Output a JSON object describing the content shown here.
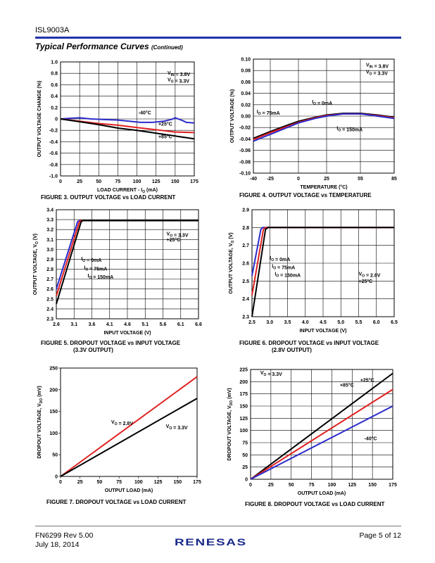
{
  "header": {
    "doc_id": "ISL9003A",
    "section_title": "Typical Performance Curves",
    "section_suffix": "(Continued)"
  },
  "footer": {
    "doc_number": "FN6299  Rev 5.00",
    "date": "July 18, 2014",
    "page": "Page 5 of 12",
    "logo": "RENESAS"
  },
  "colors": {
    "blue": "#2b2bcc",
    "red": "#e02020",
    "black": "#000000",
    "rule": "#2233aa"
  },
  "chart_data": [
    {
      "id": "fig3",
      "type": "line",
      "caption": "FIGURE 3.  OUTPUT VOLTAGE vs LOAD CURRENT",
      "xlabel": "LOAD CURRENT - I_O (mA)",
      "ylabel": "OUTPUT VOLTAGE CHANGE (%)",
      "xlim": [
        0,
        175
      ],
      "ylim": [
        -1.0,
        1.0
      ],
      "xticks": [
        0,
        25,
        50,
        75,
        100,
        125,
        150,
        175
      ],
      "xtick_labels": [
        "0",
        "25",
        "50",
        "75",
        "100",
        "125",
        "150",
        "175"
      ],
      "yticks": [
        -1.0,
        -0.8,
        -0.6,
        -0.4,
        -0.2,
        0,
        0.2,
        0.4,
        0.6,
        0.8,
        1.0
      ],
      "ytick_labels": [
        "-1.0",
        "-0.8",
        "-0.6",
        "-0.4",
        "-0.2",
        "0",
        "0.2",
        "0.4",
        "0.6",
        "0.8",
        "1.0"
      ],
      "grid": true,
      "series": [
        {
          "name": "-40°C",
          "color": "#2b2bcc",
          "x": [
            0,
            10,
            25,
            40,
            55,
            75,
            90,
            105,
            120,
            135,
            145,
            150,
            158,
            165,
            175
          ],
          "y": [
            0,
            0.01,
            0.02,
            0,
            -0.01,
            -0.02,
            -0.04,
            -0.06,
            -0.06,
            -0.04,
            -0.01,
            0.02,
            -0.02,
            -0.06,
            -0.07
          ]
        },
        {
          "name": "+25°C",
          "color": "#e02020",
          "x": [
            0,
            25,
            50,
            75,
            100,
            125,
            150,
            175
          ],
          "y": [
            0,
            -0.04,
            -0.08,
            -0.11,
            -0.15,
            -0.19,
            -0.23,
            -0.24
          ]
        },
        {
          "name": "+85°C",
          "color": "#000000",
          "x": [
            0,
            25,
            50,
            75,
            100,
            125,
            150,
            175
          ],
          "y": [
            0,
            -0.05,
            -0.1,
            -0.16,
            -0.2,
            -0.25,
            -0.3,
            -0.35
          ]
        }
      ],
      "annotations": [
        {
          "parts": [
            [
              "V",
              ""
            ],
            [
              "IN",
              "sub"
            ],
            [
              " = 3.8V",
              ""
            ]
          ],
          "x": 140,
          "y": 0.78
        },
        {
          "parts": [
            [
              "V",
              ""
            ],
            [
              "O",
              "sub"
            ],
            [
              " = 3.3V",
              ""
            ]
          ],
          "x": 140,
          "y": 0.66
        },
        {
          "parts": [
            [
              "-40°C",
              ""
            ]
          ],
          "x": 102,
          "y": 0.08
        },
        {
          "parts": [
            [
              "+25°C",
              ""
            ]
          ],
          "x": 128,
          "y": -0.12
        },
        {
          "parts": [
            [
              "+85°C",
              ""
            ]
          ],
          "x": 128,
          "y": -0.34
        }
      ]
    },
    {
      "id": "fig4",
      "type": "line",
      "caption": "FIGURE 4.  OUTPUT VOLTAGE vs TEMPERATURE",
      "xlabel": "TEMPERATURE (°C)",
      "ylabel": "OUTPUT VOLTAGE (%)",
      "xlim": [
        -40,
        85
      ],
      "ylim": [
        -0.1,
        0.1
      ],
      "xticks": [
        -40,
        -25,
        0,
        25,
        55,
        85
      ],
      "xtick_labels": [
        "-40",
        "-25",
        "0",
        "25",
        "55",
        "85"
      ],
      "yticks": [
        -0.1,
        -0.08,
        -0.06,
        -0.04,
        -0.02,
        0,
        0.02,
        0.04,
        0.06,
        0.08,
        0.1
      ],
      "ytick_labels": [
        "-0.10",
        "-0.08",
        "-0.06",
        "-0.04",
        "-0.02",
        "0.00",
        "0.02",
        "0.04",
        "0.06",
        "0.08",
        "0.10"
      ],
      "grid": true,
      "series": [
        {
          "name": "I_O = 0mA",
          "color": "#000000",
          "x": [
            -40,
            -25,
            -10,
            0,
            15,
            25,
            40,
            55,
            70,
            85
          ],
          "y": [
            -0.039,
            -0.027,
            -0.016,
            -0.009,
            -0.002,
            0.002,
            0.005,
            0.005,
            0.002,
            -0.002
          ]
        },
        {
          "name": "I_O = 75mA",
          "color": "#e02020",
          "x": [
            -40,
            -25,
            -10,
            0,
            15,
            25,
            40,
            55,
            70,
            85
          ],
          "y": [
            -0.041,
            -0.029,
            -0.018,
            -0.011,
            -0.003,
            0.001,
            0.004,
            0.004,
            0.001,
            -0.003
          ]
        },
        {
          "name": "I_O = 150mA",
          "color": "#2b2bcc",
          "x": [
            -40,
            -25,
            -10,
            0,
            15,
            25,
            40,
            55,
            70,
            85
          ],
          "y": [
            -0.044,
            -0.032,
            -0.02,
            -0.012,
            -0.004,
            0.0,
            0.004,
            0.004,
            0.0,
            -0.004
          ]
        }
      ],
      "annotations": [
        {
          "parts": [
            [
              "V",
              ""
            ],
            [
              "IN",
              "sub"
            ],
            [
              " = 3.8V",
              ""
            ]
          ],
          "x": 60,
          "y": 0.087
        },
        {
          "parts": [
            [
              "V",
              ""
            ],
            [
              "O",
              "sub"
            ],
            [
              " = 3.3V",
              ""
            ]
          ],
          "x": 60,
          "y": 0.075
        },
        {
          "parts": [
            [
              "I",
              ""
            ],
            [
              "O",
              "sub"
            ],
            [
              " = 0mA",
              ""
            ]
          ],
          "x": 12,
          "y": 0.022
        },
        {
          "parts": [
            [
              "I",
              ""
            ],
            [
              "O",
              "sub"
            ],
            [
              " = 75mA",
              ""
            ]
          ],
          "x": -37,
          "y": 0.005
        },
        {
          "parts": [
            [
              "I",
              ""
            ],
            [
              "O",
              "sub"
            ],
            [
              " = 150mA",
              ""
            ]
          ],
          "x": 34,
          "y": -0.024
        }
      ]
    },
    {
      "id": "fig5",
      "type": "line",
      "caption": "FIGURE 5.  DROPOUT VOLTAGE vs INPUT VOLTAGE",
      "caption2": "(3.3V OUTPUT)",
      "xlabel": "INPUT VOLTAGE (V)",
      "ylabel": "OUTPUT VOLTAGE, V_O (V)",
      "xlim": [
        2.6,
        6.6
      ],
      "ylim": [
        2.3,
        3.4
      ],
      "xticks": [
        2.6,
        3.1,
        3.6,
        4.1,
        4.6,
        5.1,
        5.6,
        6.1,
        6.6
      ],
      "xtick_labels": [
        "2.6",
        "3.1",
        "3.6",
        "4.1",
        "4.6",
        "5.1",
        "5.6",
        "6.1",
        "6.6"
      ],
      "yticks": [
        2.3,
        2.4,
        2.5,
        2.6,
        2.7,
        2.8,
        2.9,
        3.0,
        3.1,
        3.2,
        3.3,
        3.4
      ],
      "ytick_labels": [
        "2.3",
        "2.4",
        "2.5",
        "2.6",
        "2.7",
        "2.8",
        "2.9",
        "3.0",
        "3.1",
        "3.2",
        "3.3",
        "3.4"
      ],
      "grid": true,
      "series": [
        {
          "name": "I_O = 0mA",
          "color": "#2b2bcc",
          "x": [
            2.6,
            3.2,
            3.25,
            6.6
          ],
          "y": [
            2.6,
            3.28,
            3.29,
            3.29
          ]
        },
        {
          "name": "I_O = 75mA",
          "color": "#e02020",
          "x": [
            2.6,
            3.25,
            3.3,
            6.6
          ],
          "y": [
            2.53,
            3.28,
            3.29,
            3.29
          ]
        },
        {
          "name": "I_O = 150mA",
          "color": "#000000",
          "x": [
            2.6,
            3.3,
            3.35,
            6.6
          ],
          "y": [
            2.45,
            3.28,
            3.29,
            3.29
          ]
        }
      ],
      "annotations": [
        {
          "parts": [
            [
              "V",
              ""
            ],
            [
              "O",
              "sub"
            ],
            [
              " = 3.3V",
              ""
            ]
          ],
          "x": 5.7,
          "y": 3.14
        },
        {
          "parts": [
            [
              "+25°C",
              ""
            ]
          ],
          "x": 5.7,
          "y": 3.08
        },
        {
          "parts": [
            [
              "I",
              ""
            ],
            [
              "O",
              "sub"
            ],
            [
              " = 0mA",
              ""
            ]
          ],
          "x": 3.3,
          "y": 2.89
        },
        {
          "parts": [
            [
              "I",
              ""
            ],
            [
              "O",
              "sub"
            ],
            [
              " = 75mA",
              ""
            ]
          ],
          "x": 3.38,
          "y": 2.8
        },
        {
          "parts": [
            [
              "I",
              ""
            ],
            [
              "O",
              "sub"
            ],
            [
              " = 150mA",
              ""
            ]
          ],
          "x": 3.48,
          "y": 2.72
        }
      ]
    },
    {
      "id": "fig6",
      "type": "line",
      "caption": "FIGURE 6.  DROPOUT VOLTAGE vs INPUT VOLTAGE",
      "caption2": "(2.8V OUTPUT)",
      "xlabel": "INPUT VOLTAGE (V)",
      "ylabel": "OUTPUT VOLTAGE, V_O (V)",
      "xlim": [
        2.5,
        6.5
      ],
      "ylim": [
        2.3,
        2.9
      ],
      "xticks": [
        2.5,
        3.0,
        3.5,
        4.0,
        4.5,
        5.0,
        5.5,
        6.0,
        6.5
      ],
      "xtick_labels": [
        "2.5",
        "3.0",
        "3.5",
        "4.0",
        "4.5",
        "5.0",
        "5.5",
        "6.0",
        "6.5"
      ],
      "yticks": [
        2.3,
        2.4,
        2.5,
        2.6,
        2.7,
        2.8,
        2.9
      ],
      "ytick_labels": [
        "2.3",
        "2.4",
        "2.5",
        "2.6",
        "2.7",
        "2.8",
        "2.9"
      ],
      "grid": true,
      "series": [
        {
          "name": "I_O = 0mA",
          "color": "#2b2bcc",
          "x": [
            2.5,
            2.75,
            2.8,
            6.5
          ],
          "y": [
            2.53,
            2.79,
            2.8,
            2.8
          ]
        },
        {
          "name": "I_O = 75mA",
          "color": "#e02020",
          "x": [
            2.5,
            2.82,
            2.88,
            6.5
          ],
          "y": [
            2.42,
            2.79,
            2.8,
            2.8
          ]
        },
        {
          "name": "I_O = 150mA",
          "color": "#000000",
          "x": [
            2.5,
            2.88,
            2.95,
            6.5
          ],
          "y": [
            2.3,
            2.79,
            2.8,
            2.8
          ]
        }
      ],
      "annotations": [
        {
          "parts": [
            [
              "V",
              ""
            ],
            [
              "O",
              "sub"
            ],
            [
              " = 2.8V",
              ""
            ]
          ],
          "x": 5.5,
          "y": 2.53
        },
        {
          "parts": [
            [
              "+25°C",
              ""
            ]
          ],
          "x": 5.5,
          "y": 2.49
        },
        {
          "parts": [
            [
              "I",
              ""
            ],
            [
              "O",
              "sub"
            ],
            [
              " = 0mA",
              ""
            ]
          ],
          "x": 3.0,
          "y": 2.62
        },
        {
          "parts": [
            [
              "I",
              ""
            ],
            [
              "O",
              "sub"
            ],
            [
              " = 75mA",
              ""
            ]
          ],
          "x": 3.06,
          "y": 2.575
        },
        {
          "parts": [
            [
              "I",
              ""
            ],
            [
              "O",
              "sub"
            ],
            [
              " = 150mA",
              ""
            ]
          ],
          "x": 3.14,
          "y": 2.53
        }
      ]
    },
    {
      "id": "fig7",
      "type": "line",
      "caption": "FIGURE 7.  DROPOUT VOLTAGE vs LOAD CURRENT",
      "xlabel": "OUTPUT LOAD (mA)",
      "ylabel": "DROPOUT VOLTAGE, V_DO (mV)",
      "xlim": [
        0,
        175
      ],
      "ylim": [
        0,
        250
      ],
      "xticks": [
        0,
        25,
        50,
        75,
        100,
        125,
        150,
        175
      ],
      "xtick_labels": [
        "0",
        "25",
        "50",
        "75",
        "100",
        "125",
        "150",
        "175"
      ],
      "yticks": [
        0,
        50,
        100,
        150,
        200,
        250
      ],
      "ytick_labels": [
        "0",
        "50",
        "100",
        "150",
        "200",
        "250"
      ],
      "grid": false,
      "series": [
        {
          "name": "V_O = 2.8V",
          "color": "#e02020",
          "x": [
            0,
            175
          ],
          "y": [
            0,
            230
          ]
        },
        {
          "name": "V_O = 3.3V",
          "color": "#000000",
          "x": [
            0,
            175
          ],
          "y": [
            0,
            180
          ]
        }
      ],
      "annotations": [
        {
          "parts": [
            [
              "V",
              ""
            ],
            [
              "O",
              "sub"
            ],
            [
              " = 2.8V",
              ""
            ]
          ],
          "x": 65,
          "y": 122
        },
        {
          "parts": [
            [
              "V",
              ""
            ],
            [
              "O",
              "sub"
            ],
            [
              " = 3.3V",
              ""
            ]
          ],
          "x": 135,
          "y": 112
        }
      ]
    },
    {
      "id": "fig8",
      "type": "line",
      "caption": "FIGURE 8.  DROPOUT VOLTAGE vs LOAD CURRENT",
      "xlabel": "OUTPUT LOAD (mA)",
      "ylabel": "DROPOUT VOLTAGE, V_DO (mV)",
      "xlim": [
        0,
        175
      ],
      "ylim": [
        0,
        225
      ],
      "xticks": [
        0,
        25,
        50,
        75,
        100,
        125,
        150,
        175
      ],
      "xtick_labels": [
        "0",
        "25",
        "50",
        "75",
        "100",
        "125",
        "150",
        "175"
      ],
      "yticks": [
        0,
        25,
        50,
        75,
        100,
        125,
        150,
        175,
        200,
        225
      ],
      "ytick_labels": [
        "0",
        "25",
        "50",
        "75",
        "100",
        "125",
        "150",
        "175",
        "200",
        "225"
      ],
      "grid": true,
      "series": [
        {
          "name": "+85°C",
          "color": "#000000",
          "x": [
            0,
            175
          ],
          "y": [
            0,
            217
          ]
        },
        {
          "name": "+25°C",
          "color": "#e02020",
          "x": [
            0,
            175
          ],
          "y": [
            0,
            184
          ]
        },
        {
          "name": "-40°C",
          "color": "#2b2bcc",
          "x": [
            0,
            175
          ],
          "y": [
            0,
            150
          ]
        }
      ],
      "annotations": [
        {
          "parts": [
            [
              "V",
              ""
            ],
            [
              "O",
              "sub"
            ],
            [
              " = 3.3V",
              ""
            ]
          ],
          "x": 12,
          "y": 215
        },
        {
          "parts": [
            [
              "+85°C",
              ""
            ]
          ],
          "x": 110,
          "y": 190
        },
        {
          "parts": [
            [
              "+25°C",
              ""
            ]
          ],
          "x": 135,
          "y": 200
        },
        {
          "parts": [
            [
              "-40°C",
              ""
            ]
          ],
          "x": 140,
          "y": 80
        }
      ]
    }
  ]
}
